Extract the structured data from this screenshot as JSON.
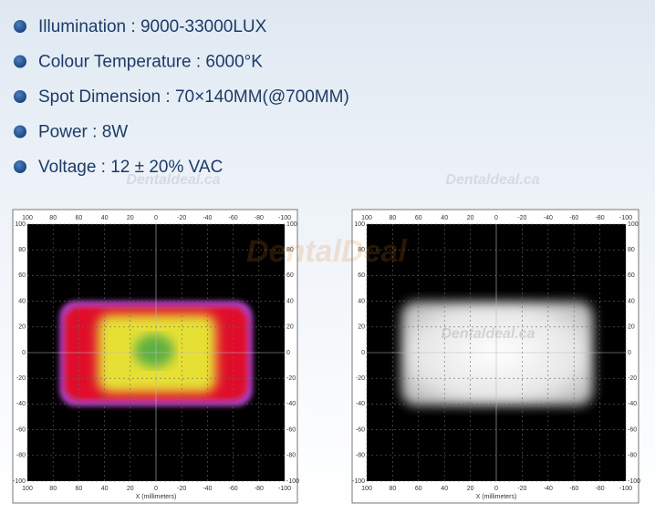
{
  "bullets": [
    "Illumination : 9000-33000LUX",
    "Colour Temperature : 6000°K",
    "Spot Dimension : 70×140MM(@700MM)",
    "Power : 8W",
    "Voltage : 12 ± 20% VAC"
  ],
  "watermarks": [
    "Dentaldeal.ca",
    "Dentaldeal.ca",
    "DentalDeal",
    "Dentaldeal.ca"
  ],
  "plots": [
    {
      "x_ticks": [
        100,
        80,
        60,
        40,
        20,
        0,
        -20,
        -40,
        -60,
        -80,
        -100
      ],
      "y_ticks": [
        100,
        80,
        60,
        40,
        20,
        0,
        -20,
        -40,
        -60,
        -80,
        -100
      ],
      "x_label": "X (millimeters)"
    },
    {
      "x_ticks": [
        100,
        80,
        60,
        40,
        20,
        0,
        -20,
        -40,
        -60,
        -80,
        -100
      ],
      "y_ticks": [
        100,
        80,
        60,
        40,
        20,
        0,
        -20,
        -40,
        -60,
        -80,
        -100
      ],
      "x_label": "X (millimeters)"
    }
  ]
}
